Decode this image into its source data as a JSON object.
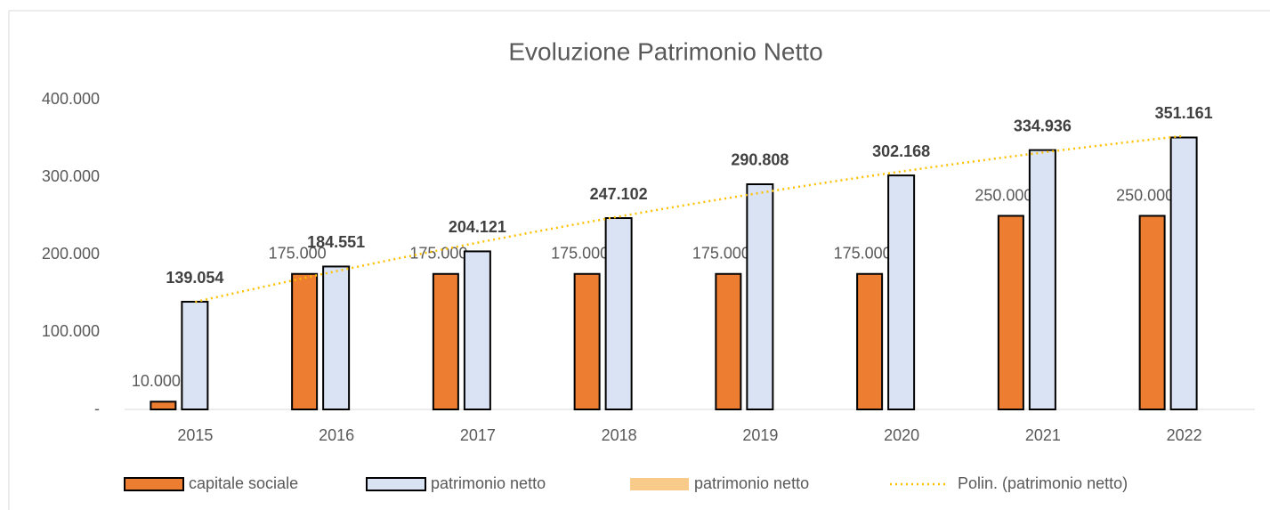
{
  "chart_data": {
    "type": "bar",
    "title": "Evoluzione Patrimonio Netto",
    "categories": [
      "2015",
      "2016",
      "2017",
      "2018",
      "2019",
      "2020",
      "2021",
      "2022"
    ],
    "series": [
      {
        "name": "capitale sociale",
        "color": "#ed7d31",
        "values": [
          10000,
          175000,
          175000,
          175000,
          175000,
          175000,
          250000,
          250000
        ],
        "value_labels": [
          "10.000",
          "175.000",
          "175.000",
          "175.000",
          "175.000",
          "175.000",
          "250.000",
          "250.000"
        ]
      },
      {
        "name": "patrimonio netto",
        "color": "#dae3f3",
        "values": [
          139054,
          184551,
          204121,
          247102,
          290808,
          302168,
          334936,
          351161
        ],
        "value_labels": [
          "139.054",
          "184.551",
          "204.121",
          "247.102",
          "290.808",
          "302.168",
          "334.936",
          "351.161"
        ]
      },
      {
        "name": "patrimonio netto",
        "color": "#f8cb8a"
      }
    ],
    "trendline": {
      "name": "Polin. (patrimonio netto)",
      "color": "#ffc000",
      "series": 1
    },
    "ylim": [
      0,
      400000
    ],
    "yticks": [
      {
        "value": 0,
        "label": "-"
      },
      {
        "value": 100000,
        "label": "100.000"
      },
      {
        "value": 200000,
        "label": "200.000"
      },
      {
        "value": 300000,
        "label": "300.000"
      },
      {
        "value": 400000,
        "label": "400.000"
      }
    ],
    "grid": false
  }
}
